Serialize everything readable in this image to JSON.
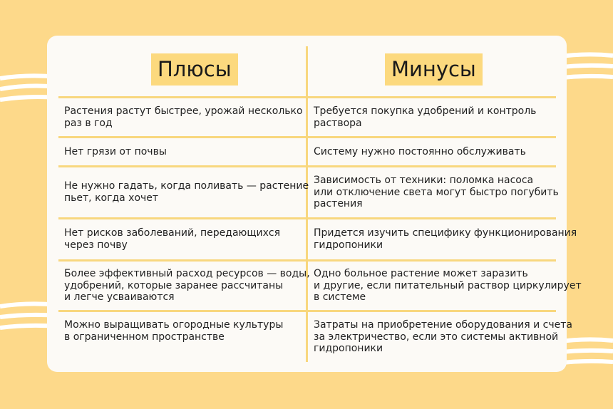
{
  "table": {
    "headers": [
      "Плюсы",
      "Минусы"
    ],
    "rows": [
      [
        [
          "Растения растут быстрее, урожай несколько",
          "раз в год"
        ],
        [
          "Требуется покупка удобрений и контроль",
          "раствора"
        ]
      ],
      [
        [
          "Нет грязи от почвы"
        ],
        [
          "Систему нужно постоянно обслуживать"
        ]
      ],
      [
        [
          "Не нужно гадать, когда поливать — растение",
          "пьет, когда хочет"
        ],
        [
          "Зависимость от техники:  поломка насоса",
          "или отключение света могут быстро погубить",
          "растения"
        ]
      ],
      [
        [
          "Нет рисков заболеваний, передающихся",
          "через почву"
        ],
        [
          "Придется изучить специфику функционирования",
          "гидропоники"
        ]
      ],
      [
        [
          "Более эффективный расход ресурсов — воды,",
          "удобрений, которые заранее рассчитаны",
          "и легче усваиваются"
        ],
        [
          "Одно больное растение может заразить",
          "и другие, если питательный раствор циркулирует",
          "в системе"
        ]
      ],
      [
        [
          "Можно выращивать огородные культуры",
          "в ограниченном пространстве"
        ],
        [
          "Затраты на приобретение оборудования и счета",
          "за электричество, если это системы активной",
          "гидропоники"
        ]
      ]
    ]
  }
}
